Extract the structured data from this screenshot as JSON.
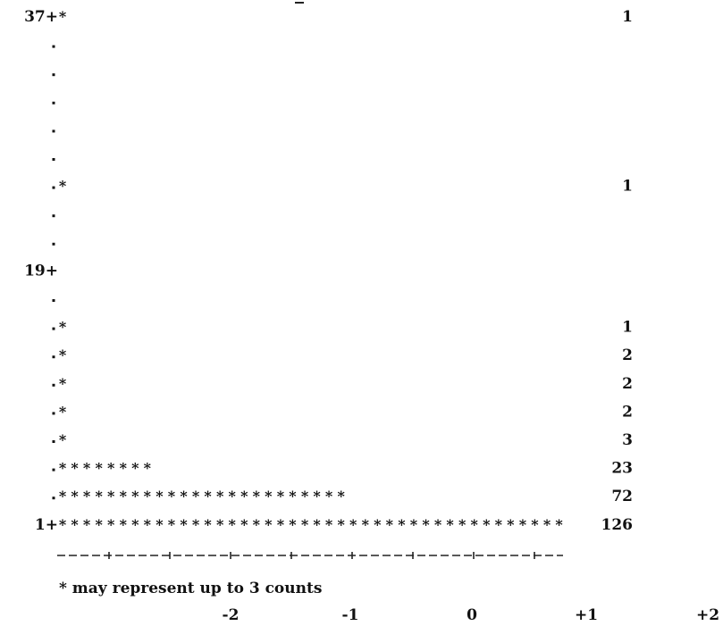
{
  "chart_data": {
    "type": "bar",
    "orientation": "text-histogram",
    "rows": [
      {
        "axis_label": "37+",
        "stars": 1,
        "count": "1"
      },
      {
        "axis_label": "",
        "stars": 0,
        "count": ""
      },
      {
        "axis_label": "",
        "stars": 0,
        "count": ""
      },
      {
        "axis_label": "",
        "stars": 0,
        "count": ""
      },
      {
        "axis_label": "",
        "stars": 0,
        "count": ""
      },
      {
        "axis_label": "",
        "stars": 0,
        "count": ""
      },
      {
        "axis_label": "",
        "stars": 1,
        "count": "1"
      },
      {
        "axis_label": "",
        "stars": 0,
        "count": ""
      },
      {
        "axis_label": "",
        "stars": 0,
        "count": ""
      },
      {
        "axis_label": "19+",
        "stars": 0,
        "count": ""
      },
      {
        "axis_label": "",
        "stars": 0,
        "count": ""
      },
      {
        "axis_label": "",
        "stars": 1,
        "count": "1"
      },
      {
        "axis_label": "",
        "stars": 1,
        "count": "2"
      },
      {
        "axis_label": "",
        "stars": 1,
        "count": "2"
      },
      {
        "axis_label": "",
        "stars": 1,
        "count": "2"
      },
      {
        "axis_label": "",
        "stars": 1,
        "count": "3"
      },
      {
        "axis_label": "",
        "stars": 8,
        "count": "23"
      },
      {
        "axis_label": "",
        "stars": 24,
        "count": "72"
      },
      {
        "axis_label": "1+",
        "stars": 42,
        "count": "126"
      }
    ],
    "x_tick_labels": [
      "-2",
      "-1",
      "0",
      "+1",
      "+2"
    ],
    "note": "* may represent up to 3 counts"
  }
}
